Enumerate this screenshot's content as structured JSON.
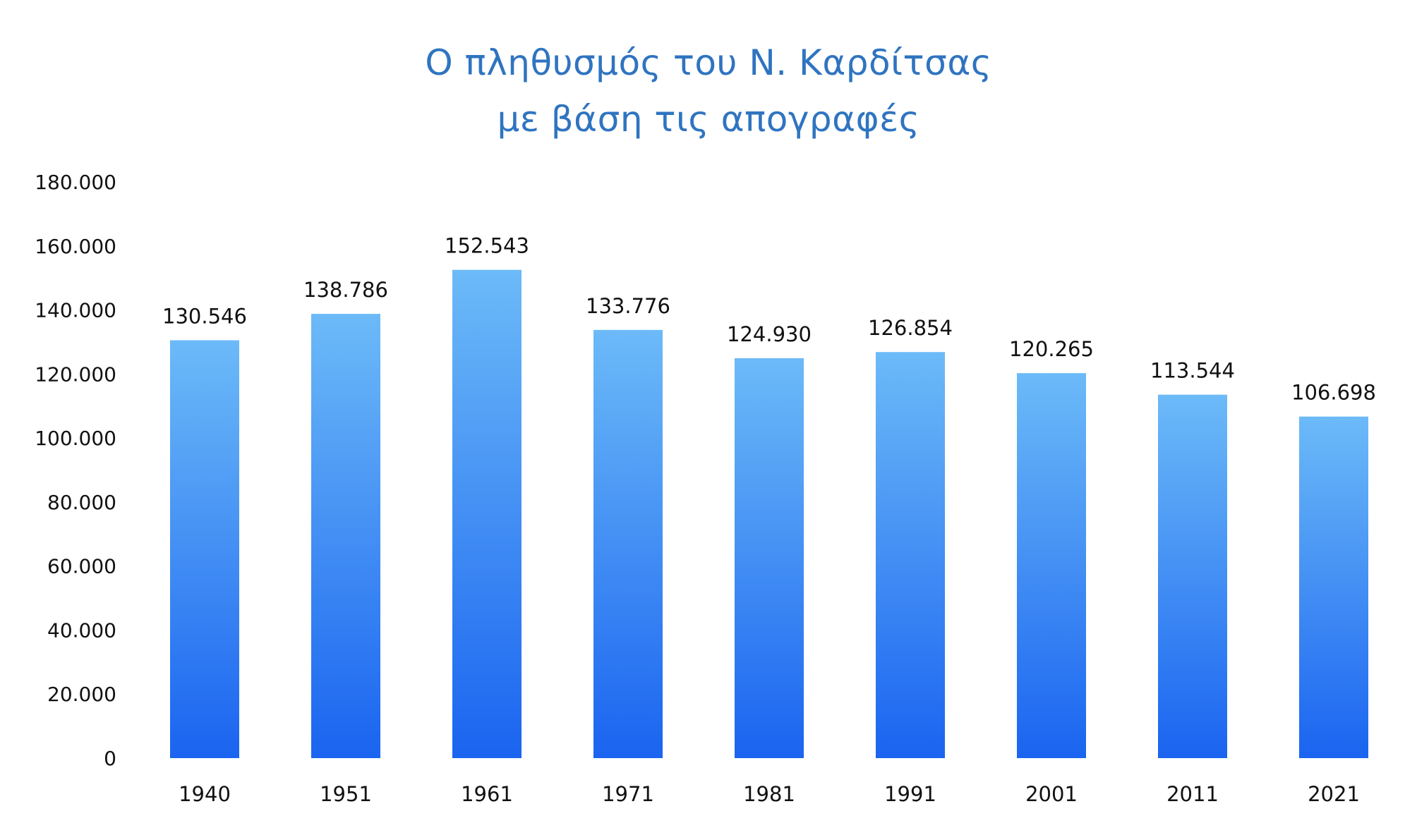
{
  "chart_data": {
    "type": "bar",
    "title_lines": [
      "Ο πληθυσμός του Ν. Καρδίτσας",
      "με βάση τις απογραφές"
    ],
    "xlabel": "",
    "ylabel": "",
    "categories": [
      "1940",
      "1951",
      "1961",
      "1971",
      "1981",
      "1991",
      "2001",
      "2011",
      "2021"
    ],
    "values": [
      130546,
      138786,
      152543,
      133776,
      124930,
      126854,
      120265,
      113544,
      106698
    ],
    "data_labels": [
      "130.546",
      "138.786",
      "152.543",
      "133.776",
      "124.930",
      "126.854",
      "120.265",
      "113.544",
      "106.698"
    ],
    "ylim": [
      0,
      180000
    ],
    "y_ticks": [
      0,
      20000,
      40000,
      60000,
      80000,
      100000,
      120000,
      140000,
      160000,
      180000
    ],
    "y_tick_labels": [
      "0",
      "20.000",
      "40.000",
      "60.000",
      "80.000",
      "100.000",
      "120.000",
      "140.000",
      "160.000",
      "180.000"
    ],
    "grid": false,
    "legend": "none",
    "bar_color_top": "#6cbaf8",
    "bar_color_bottom": "#1a64f0",
    "title_color": "#2f74c0"
  }
}
